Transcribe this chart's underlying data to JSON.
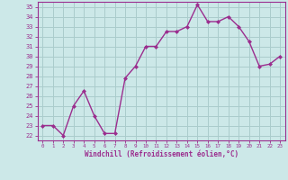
{
  "x": [
    0,
    1,
    2,
    3,
    4,
    5,
    6,
    7,
    8,
    9,
    10,
    11,
    12,
    13,
    14,
    15,
    16,
    17,
    18,
    19,
    20,
    21,
    22,
    23
  ],
  "y": [
    23.0,
    23.0,
    22.0,
    25.0,
    26.5,
    24.0,
    22.2,
    22.2,
    27.8,
    29.0,
    31.0,
    31.0,
    32.5,
    32.5,
    33.0,
    35.2,
    33.5,
    33.5,
    34.0,
    33.0,
    31.5,
    29.0,
    29.2,
    30.0
  ],
  "line_color": "#9b2d8e",
  "marker": "D",
  "marker_size": 2.0,
  "line_width": 1.0,
  "bg_color": "#cce8e8",
  "grid_color": "#aacccc",
  "xlabel": "Windchill (Refroidissement éolien,°C)",
  "xlabel_color": "#9b2d8e",
  "tick_color": "#9b2d8e",
  "xlim": [
    -0.5,
    23.5
  ],
  "ylim": [
    21.5,
    35.5
  ],
  "yticks": [
    22,
    23,
    24,
    25,
    26,
    27,
    28,
    29,
    30,
    31,
    32,
    33,
    34,
    35
  ],
  "xticks": [
    0,
    1,
    2,
    3,
    4,
    5,
    6,
    7,
    8,
    9,
    10,
    11,
    12,
    13,
    14,
    15,
    16,
    17,
    18,
    19,
    20,
    21,
    22,
    23
  ]
}
